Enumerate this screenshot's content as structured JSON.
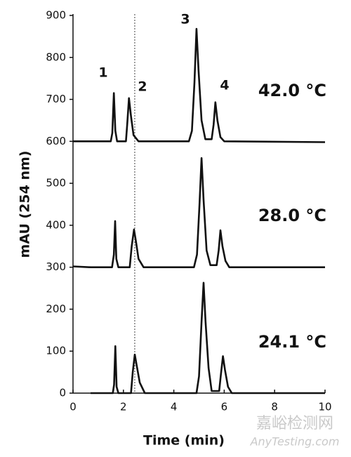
{
  "chart_data": {
    "type": "line",
    "x_label": "Time (min)",
    "y_label": "mAU (254 nm)",
    "xlim": [
      0,
      10
    ],
    "xticks": [
      0,
      2,
      4,
      6,
      8,
      10
    ],
    "ylim": [
      0,
      900
    ],
    "yticks": [
      0,
      100,
      200,
      300,
      400,
      500,
      600,
      700,
      800,
      900
    ],
    "reference_line_x": 2.45,
    "peak_labels": [
      "1",
      "2",
      "3",
      "4"
    ],
    "series": [
      {
        "name": "42.0 °C",
        "color": "#111111",
        "x": [
          0,
          1.5,
          1.56,
          1.62,
          1.68,
          1.75,
          2.1,
          2.15,
          2.22,
          2.3,
          2.4,
          2.6,
          4.6,
          4.72,
          4.82,
          4.9,
          4.98,
          5.1,
          5.25,
          5.5,
          5.58,
          5.65,
          5.73,
          5.85,
          6.0,
          10
        ],
        "values": [
          600,
          600,
          620,
          715,
          625,
          600,
          600,
          640,
          703,
          660,
          615,
          600,
          600,
          625,
          740,
          868,
          770,
          650,
          605,
          605,
          640,
          693,
          650,
          610,
          600,
          598
        ]
      },
      {
        "name": "28.0 °C",
        "color": "#111111",
        "x": [
          0,
          0.7,
          1.55,
          1.62,
          1.67,
          1.72,
          1.8,
          2.25,
          2.33,
          2.42,
          2.5,
          2.6,
          2.8,
          4.8,
          4.92,
          5.02,
          5.1,
          5.18,
          5.3,
          5.45,
          5.7,
          5.78,
          5.85,
          5.93,
          6.05,
          6.2,
          10
        ],
        "values": [
          302,
          300,
          300,
          330,
          410,
          320,
          300,
          300,
          350,
          390,
          360,
          320,
          300,
          300,
          330,
          450,
          560,
          460,
          340,
          305,
          305,
          340,
          388,
          350,
          315,
          300,
          300
        ]
      },
      {
        "name": "24.1 °C",
        "color": "#111111",
        "x": [
          0.7,
          1.58,
          1.63,
          1.68,
          1.73,
          1.8,
          2.3,
          2.37,
          2.45,
          2.53,
          2.65,
          2.85,
          4.9,
          5.0,
          5.1,
          5.18,
          5.26,
          5.38,
          5.5,
          5.8,
          5.87,
          5.95,
          6.03,
          6.15,
          6.3,
          10
        ],
        "values": [
          0,
          0,
          20,
          112,
          15,
          0,
          0,
          50,
          92,
          65,
          25,
          0,
          0,
          40,
          170,
          263,
          170,
          60,
          5,
          5,
          45,
          88,
          55,
          15,
          0,
          0
        ]
      }
    ],
    "watermark": [
      "嘉峪检测网",
      "AnyTesting.com"
    ]
  }
}
